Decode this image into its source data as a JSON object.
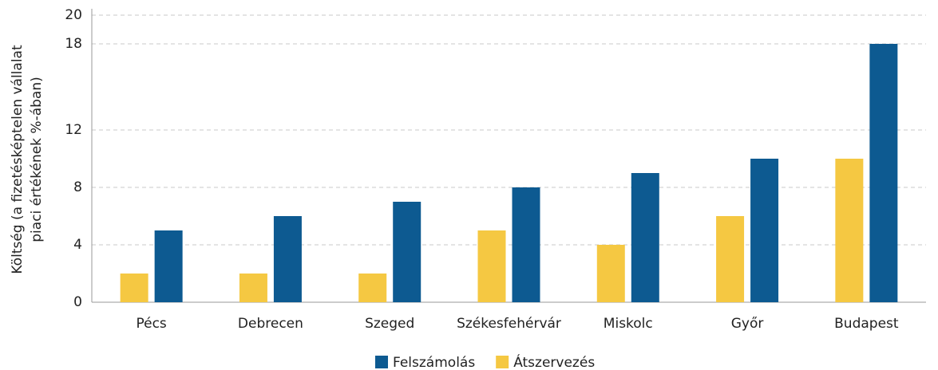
{
  "chart_data": {
    "type": "bar",
    "ylabel": [
      "Költség (a fizetésképtelen vállalat",
      "piaci értékének %-ában)"
    ],
    "categories": [
      "Pécs",
      "Debrecen",
      "Szeged",
      "Székesfehérvár",
      "Miskolc",
      "Győr",
      "Budapest"
    ],
    "series": [
      {
        "name": "Felszámolás",
        "color": "#0d5a91",
        "values": [
          5,
          6,
          7,
          8,
          9,
          10,
          18
        ]
      },
      {
        "name": "Átszervezés",
        "color": "#f5c842",
        "values": [
          2,
          2,
          2,
          5,
          4,
          6,
          10
        ]
      }
    ],
    "ylim": [
      0,
      20
    ],
    "yticks": [
      0,
      4,
      8,
      12,
      18,
      20
    ],
    "grid": true,
    "legend": "bottom"
  }
}
